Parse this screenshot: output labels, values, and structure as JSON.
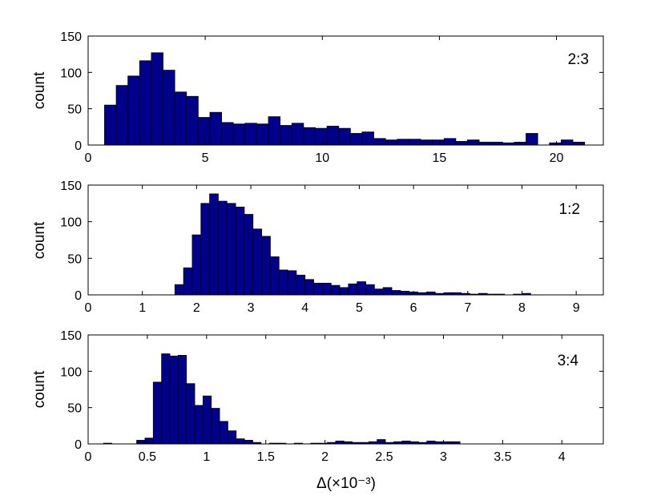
{
  "chart_data": [
    {
      "type": "bar",
      "annotation": "2:3",
      "ylabel": "count",
      "xlim": [
        0,
        22
      ],
      "ylim": [
        0,
        150
      ],
      "xticks": [
        "0",
        "5",
        "10",
        "15",
        "20"
      ],
      "yticks": [
        "0",
        "50",
        "100",
        "150"
      ],
      "bin_start": 0.7,
      "bin_width": 0.5,
      "values": [
        55,
        82,
        95,
        116,
        127,
        103,
        73,
        67,
        38,
        45,
        31,
        29,
        30,
        29,
        39,
        27,
        30,
        24,
        23,
        26,
        23,
        16,
        18,
        9,
        7,
        8,
        8,
        7,
        7,
        9,
        5,
        7,
        4,
        4,
        3,
        4,
        16,
        0,
        3,
        7,
        4,
        0
      ]
    },
    {
      "type": "bar",
      "annotation": "1:2",
      "ylabel": "count",
      "xlim": [
        0,
        9.5
      ],
      "ylim": [
        0,
        150
      ],
      "xticks": [
        "0",
        "1",
        "2",
        "3",
        "4",
        "5",
        "6",
        "7",
        "8",
        "9"
      ],
      "yticks": [
        "0",
        "50",
        "100",
        "150"
      ],
      "bin_start": 1.6,
      "bin_width": 0.16,
      "values": [
        14,
        37,
        82,
        125,
        138,
        128,
        125,
        120,
        110,
        90,
        80,
        52,
        34,
        33,
        27,
        21,
        16,
        16,
        13,
        10,
        15,
        18,
        14,
        8,
        10,
        6,
        5,
        4,
        3,
        4,
        2,
        3,
        3,
        2,
        1,
        2,
        1,
        1,
        0,
        1,
        2
      ]
    },
    {
      "type": "bar",
      "annotation": "3:4",
      "ylabel": "count",
      "xlabel": "Δ(×10⁻³)",
      "xlim": [
        0,
        4.35
      ],
      "ylim": [
        0,
        150
      ],
      "xticks": [
        "0",
        "0.5",
        "1",
        "1.5",
        "2",
        "2.5",
        "3",
        "3.5",
        "4"
      ],
      "yticks": [
        "0",
        "50",
        "100",
        "150"
      ],
      "bin_start": 0.13,
      "bin_width": 0.07,
      "values": [
        1,
        0,
        0,
        0,
        5,
        8,
        85,
        124,
        121,
        122,
        83,
        53,
        66,
        49,
        31,
        18,
        7,
        5,
        2,
        0,
        1,
        1,
        0,
        1,
        0,
        1,
        1,
        2,
        4,
        3,
        2,
        2,
        3,
        6,
        2,
        3,
        4,
        3,
        2,
        4,
        3,
        3,
        3
      ]
    }
  ]
}
